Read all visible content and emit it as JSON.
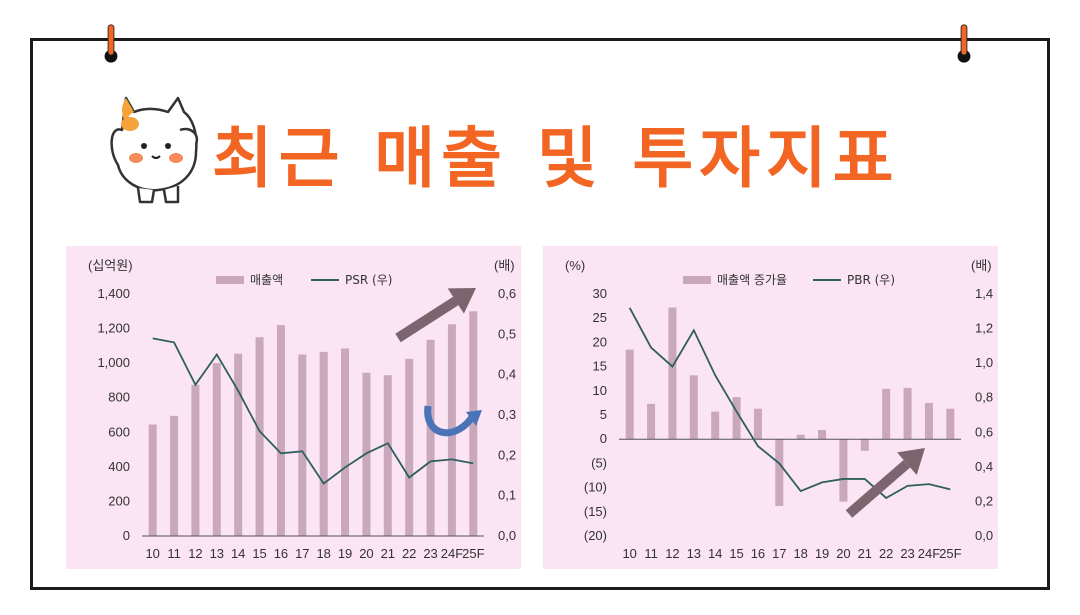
{
  "title": "최근 매출 및 투자지표",
  "colors": {
    "accent": "#f26522",
    "bar": "#c9a8bd",
    "line": "#2f5f5a",
    "panel_bg": "#fbe4f3",
    "arrow": "#7d6570",
    "curve_arrow": "#4a73b8"
  },
  "chart_data": [
    {
      "type": "bar",
      "categories": [
        "10",
        "11",
        "12",
        "13",
        "14",
        "15",
        "16",
        "17",
        "18",
        "19",
        "20",
        "21",
        "22",
        "23",
        "24F",
        "25F"
      ],
      "left_unit": "(십억원)",
      "right_unit": "(배)",
      "ylim": [
        0,
        1400
      ],
      "y2lim": [
        0,
        0.6
      ],
      "yticks": [
        "0",
        "200",
        "400",
        "600",
        "800",
        "1,000",
        "1,200",
        "1,400"
      ],
      "y2ticks": [
        "0,0",
        "0,1",
        "0,2",
        "0,3",
        "0,4",
        "0,5",
        "0,6"
      ],
      "legend": [
        "매출액",
        "PSR (우)"
      ],
      "series": [
        {
          "name": "매출액",
          "type": "bar",
          "values": [
            645,
            695,
            875,
            1000,
            1055,
            1150,
            1220,
            1050,
            1065,
            1085,
            945,
            930,
            1025,
            1135,
            1225,
            1300
          ]
        },
        {
          "name": "PSR (우)",
          "type": "line",
          "axis": "right",
          "values": [
            0.49,
            0.48,
            0.375,
            0.45,
            0.36,
            0.26,
            0.205,
            0.21,
            0.13,
            0.17,
            0.205,
            0.23,
            0.145,
            0.185,
            0.19,
            0.18
          ]
        }
      ]
    },
    {
      "type": "bar",
      "categories": [
        "10",
        "11",
        "12",
        "13",
        "14",
        "15",
        "16",
        "17",
        "18",
        "19",
        "20",
        "21",
        "22",
        "23",
        "24F",
        "25F"
      ],
      "left_unit": "(%)",
      "right_unit": "(배)",
      "ylim": [
        -20,
        30
      ],
      "y2lim": [
        0,
        1.4
      ],
      "yticks": [
        "(20)",
        "(15)",
        "(10)",
        "(5)",
        "0",
        "5",
        "10",
        "15",
        "20",
        "25",
        "30"
      ],
      "y2ticks": [
        "0,0",
        "0,2",
        "0,4",
        "0,6",
        "0,8",
        "1,0",
        "1,2",
        "1,4"
      ],
      "legend": [
        "매출액 증가율",
        "PBR (우)"
      ],
      "series": [
        {
          "name": "매출액 증가율",
          "type": "bar",
          "values": [
            18.5,
            7.3,
            27.2,
            13.2,
            5.7,
            8.7,
            6.3,
            -13.8,
            0.9,
            1.9,
            -12.9,
            -2.4,
            10.4,
            10.6,
            7.5,
            6.3
          ]
        },
        {
          "name": "PBR (우)",
          "type": "line",
          "axis": "right",
          "values": [
            1.32,
            1.09,
            0.98,
            1.19,
            0.93,
            0.72,
            0.52,
            0.42,
            0.26,
            0.31,
            0.33,
            0.33,
            0.22,
            0.29,
            0.3,
            0.27
          ]
        }
      ]
    }
  ]
}
